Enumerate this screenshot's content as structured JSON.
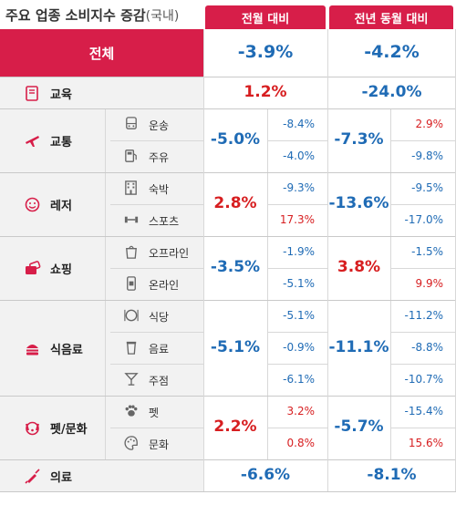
{
  "title": "주요 업종 소비지수 증감",
  "title_suffix": "(국내)",
  "columns": {
    "mom": "전월 대비",
    "yoy": "전년 동월 대비"
  },
  "colors": {
    "header": "#d71e49",
    "positive": "#d71e20",
    "negative": "#1f6bb5",
    "rowbg": "#f2f2f2",
    "icon": "#d71e49"
  },
  "chart_data": {
    "type": "table",
    "total": {
      "label": "전체",
      "mom": "-3.9%",
      "yoy": "-4.2%"
    },
    "categories": [
      {
        "name": "교육",
        "icon": "book-icon",
        "mom": "1.2%",
        "yoy": "-24.0%",
        "subs": []
      },
      {
        "name": "교통",
        "icon": "airplane-icon",
        "mom": "-5.0%",
        "yoy": "-7.3%",
        "subs": [
          {
            "name": "운송",
            "icon": "bus-icon",
            "mom": "-8.4%",
            "yoy": "2.9%"
          },
          {
            "name": "주유",
            "icon": "fuel-icon",
            "mom": "-4.0%",
            "yoy": "-9.8%"
          }
        ]
      },
      {
        "name": "레저",
        "icon": "smile-icon",
        "mom": "2.8%",
        "yoy": "-13.6%",
        "subs": [
          {
            "name": "숙박",
            "icon": "hotel-icon",
            "mom": "-9.3%",
            "yoy": "-9.5%"
          },
          {
            "name": "스포츠",
            "icon": "dumbbell-icon",
            "mom": "17.3%",
            "yoy": "-17.0%"
          }
        ]
      },
      {
        "name": "쇼핑",
        "icon": "card-icon",
        "mom": "-3.5%",
        "yoy": "3.8%",
        "subs": [
          {
            "name": "오프라인",
            "icon": "shopping-bag-icon",
            "mom": "-1.9%",
            "yoy": "-1.5%"
          },
          {
            "name": "온라인",
            "icon": "mobile-shop-icon",
            "mom": "-5.1%",
            "yoy": "9.9%"
          }
        ]
      },
      {
        "name": "식음료",
        "icon": "burger-icon",
        "mom": "-5.1%",
        "yoy": "-11.1%",
        "subs": [
          {
            "name": "식당",
            "icon": "plate-icon",
            "mom": "-5.1%",
            "yoy": "-11.2%"
          },
          {
            "name": "음료",
            "icon": "coffee-icon",
            "mom": "-0.9%",
            "yoy": "-8.8%"
          },
          {
            "name": "주점",
            "icon": "cocktail-icon",
            "mom": "-6.1%",
            "yoy": "-10.7%"
          }
        ]
      },
      {
        "name": "펫/문화",
        "icon": "dog-icon",
        "mom": "2.2%",
        "yoy": "-5.7%",
        "subs": [
          {
            "name": "펫",
            "icon": "paw-icon",
            "mom": "3.2%",
            "yoy": "-15.4%"
          },
          {
            "name": "문화",
            "icon": "palette-icon",
            "mom": "0.8%",
            "yoy": "15.6%"
          }
        ]
      },
      {
        "name": "의료",
        "icon": "syringe-icon",
        "mom": "-6.6%",
        "yoy": "-8.1%",
        "subs": []
      }
    ]
  }
}
